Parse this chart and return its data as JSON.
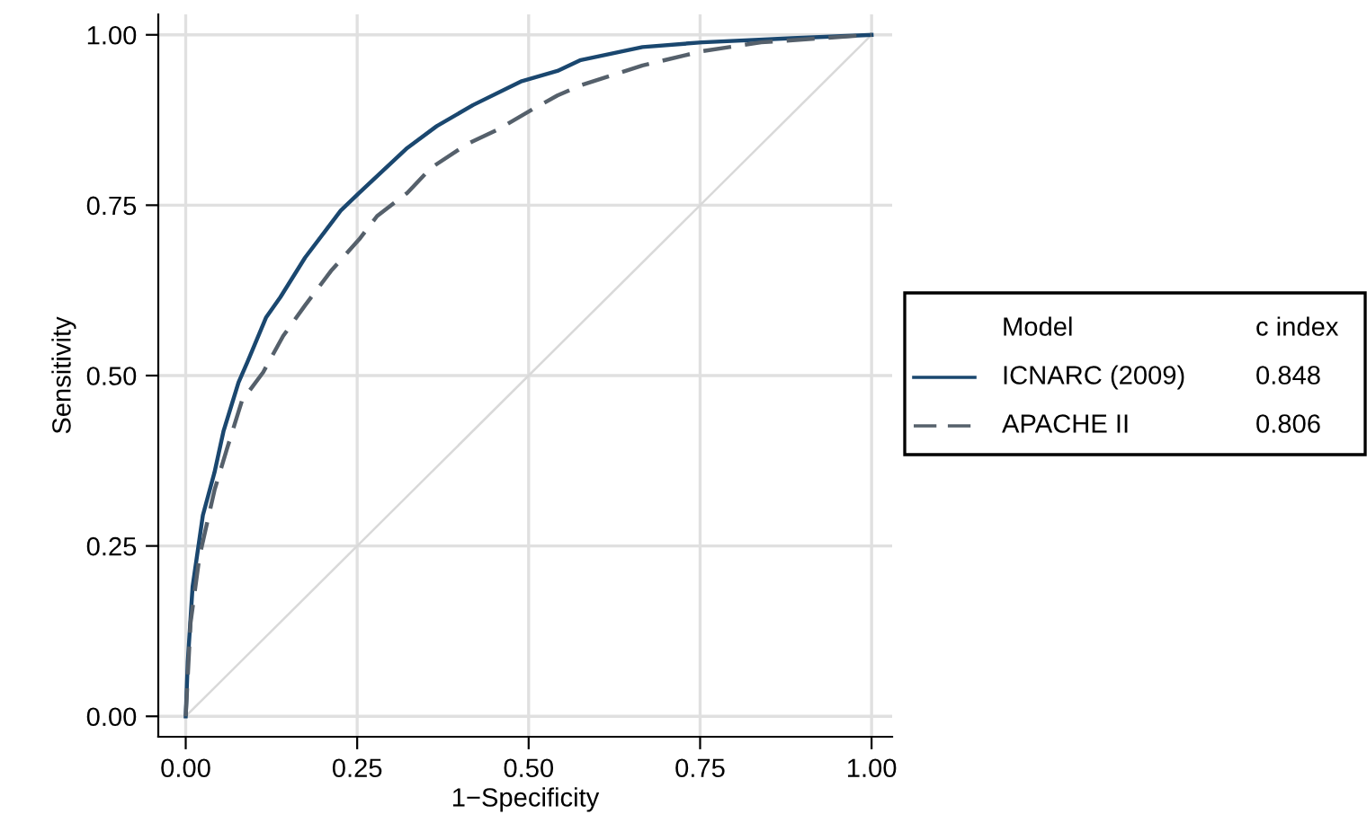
{
  "chart_data": {
    "type": "line",
    "xlabel": "1−Specificity",
    "ylabel": "Sensitivity",
    "legend_title": "Model",
    "xlim": [
      -0.04,
      1.03
    ],
    "ylim": [
      -0.03,
      1.03
    ],
    "xticks": [
      {
        "value": 0,
        "label": "0.00"
      },
      {
        "value": 0.25,
        "label": "0.25"
      },
      {
        "value": 0.5,
        "label": "0.50"
      },
      {
        "value": 0.75,
        "label": "0.75"
      },
      {
        "value": 1,
        "label": "1.00"
      }
    ],
    "yticks": [
      {
        "value": 0,
        "label": "0.00"
      },
      {
        "value": 0.25,
        "label": "0.25"
      },
      {
        "value": 0.5,
        "label": "0.50"
      },
      {
        "value": 0.75,
        "label": "0.75"
      },
      {
        "value": 1,
        "label": "1.00"
      }
    ],
    "grid": true,
    "legend": "right",
    "marker": "none",
    "annotations": [
      "c index",
      "0.848",
      "0.806"
    ],
    "series": [
      {
        "name": "ICNARC (2009)",
        "color": "#1a476f",
        "line_style": "solid",
        "x": [
          0,
          0.003,
          0.01,
          0.025,
          0.042,
          0.055,
          0.077,
          0.09,
          0.117,
          0.138,
          0.174,
          0.226,
          0.253,
          0.323,
          0.366,
          0.419,
          0.49,
          0.542,
          0.576,
          0.666,
          0.753,
          0.884,
          1
        ],
        "values": [
          0,
          0.08,
          0.19,
          0.295,
          0.358,
          0.418,
          0.49,
          0.52,
          0.585,
          0.615,
          0.673,
          0.742,
          0.768,
          0.834,
          0.866,
          0.897,
          0.932,
          0.947,
          0.963,
          0.982,
          0.989,
          0.995,
          1
        ]
      },
      {
        "name": "APACHE II",
        "color": "#55606b",
        "line_style": "dashed",
        "x": [
          0,
          0.007,
          0.02,
          0.042,
          0.06,
          0.082,
          0.113,
          0.142,
          0.174,
          0.213,
          0.253,
          0.279,
          0.323,
          0.358,
          0.411,
          0.455,
          0.508,
          0.542,
          0.576,
          0.666,
          0.753,
          0.839,
          1
        ],
        "values": [
          0,
          0.137,
          0.234,
          0.332,
          0.392,
          0.463,
          0.505,
          0.558,
          0.603,
          0.655,
          0.7,
          0.734,
          0.768,
          0.805,
          0.84,
          0.861,
          0.892,
          0.911,
          0.926,
          0.955,
          0.976,
          0.989,
          1
        ]
      },
      {
        "color": "#d9d9d9",
        "line_style": "solid",
        "x": [
          0,
          1
        ],
        "values": [
          0,
          1
        ]
      }
    ]
  }
}
